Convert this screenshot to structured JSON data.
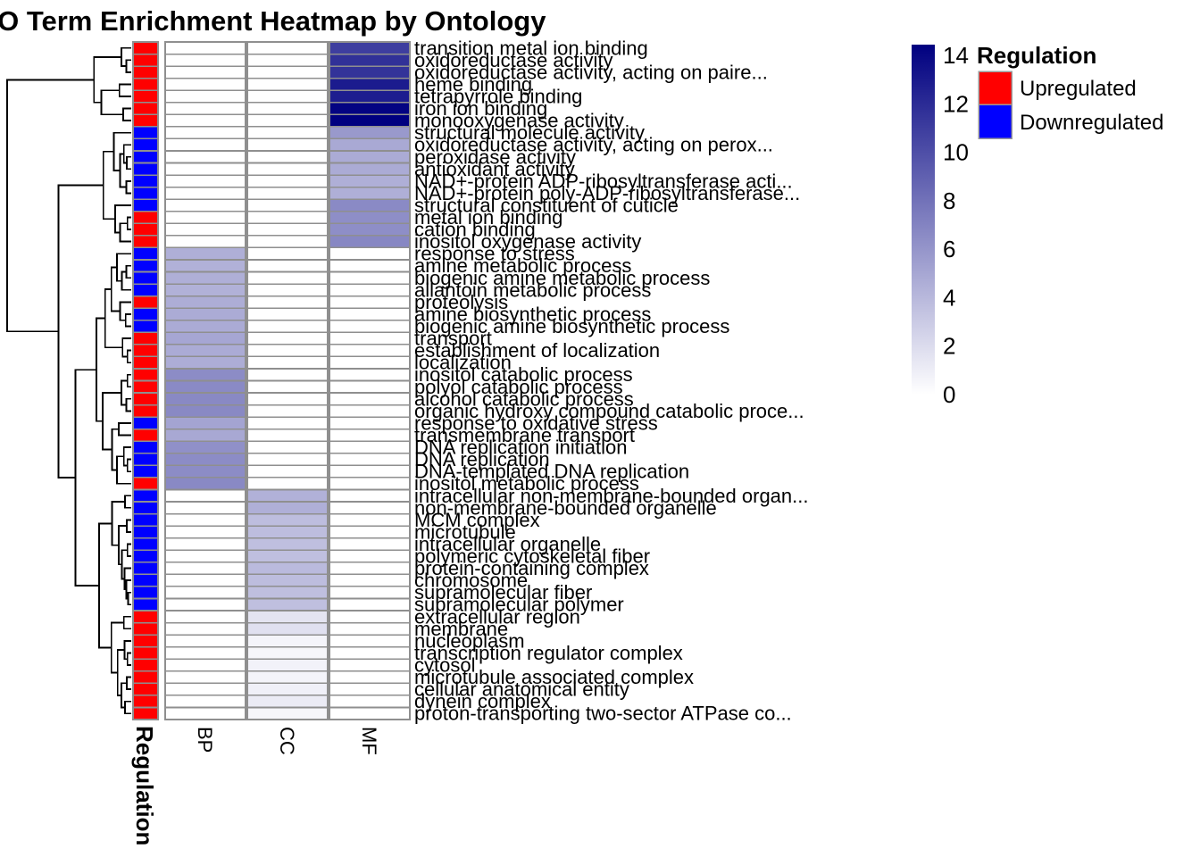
{
  "chart_data": {
    "type": "heatmap",
    "title": "GO Term Enrichment Heatmap by Ontology",
    "columns": [
      "BP",
      "CC",
      "MF"
    ],
    "value_scale": {
      "min": 0,
      "max": 14,
      "min_color": "#FFFFFF",
      "max_color": "#000080",
      "ticks": [
        14,
        12,
        10,
        8,
        6,
        4,
        2,
        0
      ]
    },
    "annotation": {
      "title": "Regulation",
      "categories": [
        {
          "label": "Upregulated",
          "color": "#FF0000"
        },
        {
          "label": "Downregulated",
          "color": "#0000FF"
        }
      ]
    },
    "rows": [
      {
        "label": "transition metal ion binding",
        "regulation": "Upregulated",
        "ontology": "MF",
        "value": 10.6
      },
      {
        "label": "oxidoreductase activity",
        "regulation": "Upregulated",
        "ontology": "MF",
        "value": 11.3
      },
      {
        "label": "oxidoreductase activity, acting on paire...",
        "regulation": "Upregulated",
        "ontology": "MF",
        "value": 11.2
      },
      {
        "label": "heme binding",
        "regulation": "Upregulated",
        "ontology": "MF",
        "value": 12.5
      },
      {
        "label": "tetrapyrrole binding",
        "regulation": "Upregulated",
        "ontology": "MF",
        "value": 12.4
      },
      {
        "label": "iron ion binding",
        "regulation": "Upregulated",
        "ontology": "MF",
        "value": 13.8
      },
      {
        "label": "monooxygenase activity",
        "regulation": "Upregulated",
        "ontology": "MF",
        "value": 14
      },
      {
        "label": "structural molecule activity",
        "regulation": "Downregulated",
        "ontology": "MF",
        "value": 5.6
      },
      {
        "label": "oxidoreductase activity, acting on perox...",
        "regulation": "Downregulated",
        "ontology": "MF",
        "value": 4.7
      },
      {
        "label": "peroxidase activity",
        "regulation": "Downregulated",
        "ontology": "MF",
        "value": 4.6
      },
      {
        "label": "antioxidant activity",
        "regulation": "Downregulated",
        "ontology": "MF",
        "value": 4.6
      },
      {
        "label": "NAD+-protein ADP-ribosyltransferase acti...",
        "regulation": "Downregulated",
        "ontology": "MF",
        "value": 4.4
      },
      {
        "label": "NAD+-protein poly-ADP-ribosyltransferase...",
        "regulation": "Downregulated",
        "ontology": "MF",
        "value": 4.4
      },
      {
        "label": "structural constituent of cuticle",
        "regulation": "Downregulated",
        "ontology": "MF",
        "value": 6.4
      },
      {
        "label": "metal ion binding",
        "regulation": "Upregulated",
        "ontology": "MF",
        "value": 6.2
      },
      {
        "label": "cation binding",
        "regulation": "Upregulated",
        "ontology": "MF",
        "value": 6.2
      },
      {
        "label": "inositol oxygenase activity",
        "regulation": "Upregulated",
        "ontology": "MF",
        "value": 6.6
      },
      {
        "label": "response to stress",
        "regulation": "Downregulated",
        "ontology": "BP",
        "value": 4.4
      },
      {
        "label": "amine metabolic process",
        "regulation": "Downregulated",
        "ontology": "BP",
        "value": 4.3
      },
      {
        "label": "biogenic amine metabolic process",
        "regulation": "Downregulated",
        "ontology": "BP",
        "value": 4.4
      },
      {
        "label": "allantoin metabolic process",
        "regulation": "Downregulated",
        "ontology": "BP",
        "value": 4.3
      },
      {
        "label": "proteolysis",
        "regulation": "Upregulated",
        "ontology": "BP",
        "value": 4.5
      },
      {
        "label": "amine biosynthetic process",
        "regulation": "Downregulated",
        "ontology": "BP",
        "value": 4.6
      },
      {
        "label": "biogenic amine biosynthetic process",
        "regulation": "Downregulated",
        "ontology": "BP",
        "value": 4.6
      },
      {
        "label": "transport",
        "regulation": "Upregulated",
        "ontology": "BP",
        "value": 4.9
      },
      {
        "label": "establishment of localization",
        "regulation": "Upregulated",
        "ontology": "BP",
        "value": 4.6
      },
      {
        "label": "localization",
        "regulation": "Upregulated",
        "ontology": "BP",
        "value": 4.5
      },
      {
        "label": "inositol catabolic process",
        "regulation": "Upregulated",
        "ontology": "BP",
        "value": 6.3
      },
      {
        "label": "polyol catabolic process",
        "regulation": "Upregulated",
        "ontology": "BP",
        "value": 6.4
      },
      {
        "label": "alcohol catabolic process",
        "regulation": "Upregulated",
        "ontology": "BP",
        "value": 6.5
      },
      {
        "label": "organic hydroxy compound catabolic proce...",
        "regulation": "Upregulated",
        "ontology": "BP",
        "value": 6.5
      },
      {
        "label": "response to oxidative stress",
        "regulation": "Downregulated",
        "ontology": "BP",
        "value": 5.0
      },
      {
        "label": "transmembrane transport",
        "regulation": "Upregulated",
        "ontology": "BP",
        "value": 4.8
      },
      {
        "label": "DNA replication initiation",
        "regulation": "Downregulated",
        "ontology": "BP",
        "value": 6.1
      },
      {
        "label": "DNA replication",
        "regulation": "Downregulated",
        "ontology": "BP",
        "value": 6.3
      },
      {
        "label": "DNA-templated DNA replication",
        "regulation": "Downregulated",
        "ontology": "BP",
        "value": 6.3
      },
      {
        "label": "inositol metabolic process",
        "regulation": "Upregulated",
        "ontology": "BP",
        "value": 6.5
      },
      {
        "label": "intracellular non-membrane-bounded organ...",
        "regulation": "Downregulated",
        "ontology": "CC",
        "value": 4.3
      },
      {
        "label": "non-membrane-bounded organelle",
        "regulation": "Downregulated",
        "ontology": "CC",
        "value": 4.4
      },
      {
        "label": "MCM complex",
        "regulation": "Downregulated",
        "ontology": "CC",
        "value": 3.6
      },
      {
        "label": "microtubule",
        "regulation": "Downregulated",
        "ontology": "CC",
        "value": 3.6
      },
      {
        "label": "intracellular organelle",
        "regulation": "Downregulated",
        "ontology": "CC",
        "value": 3.5
      },
      {
        "label": "polymeric cytoskeletal fiber",
        "regulation": "Downregulated",
        "ontology": "CC",
        "value": 3.5
      },
      {
        "label": "protein-containing complex",
        "regulation": "Downregulated",
        "ontology": "CC",
        "value": 3.8
      },
      {
        "label": "chromosome",
        "regulation": "Downregulated",
        "ontology": "CC",
        "value": 3.6
      },
      {
        "label": "supramolecular fiber",
        "regulation": "Downregulated",
        "ontology": "CC",
        "value": 3.5
      },
      {
        "label": "supramolecular polymer",
        "regulation": "Downregulated",
        "ontology": "CC",
        "value": 3.5
      },
      {
        "label": "extracellular region",
        "regulation": "Upregulated",
        "ontology": "CC",
        "value": 1.5
      },
      {
        "label": "membrane",
        "regulation": "Upregulated",
        "ontology": "CC",
        "value": 1.7
      },
      {
        "label": "nucleoplasm",
        "regulation": "Upregulated",
        "ontology": "CC",
        "value": 0.6
      },
      {
        "label": "transcription regulator complex",
        "regulation": "Upregulated",
        "ontology": "CC",
        "value": 0.5
      },
      {
        "label": "cytosol",
        "regulation": "Upregulated",
        "ontology": "CC",
        "value": 0.7
      },
      {
        "label": "microtubule associated complex",
        "regulation": "Upregulated",
        "ontology": "CC",
        "value": 0.6
      },
      {
        "label": "cellular anatomical entity",
        "regulation": "Upregulated",
        "ontology": "CC",
        "value": 0.8
      },
      {
        "label": "dynein complex",
        "regulation": "Upregulated",
        "ontology": "CC",
        "value": 1.1
      },
      {
        "label": "proton-transporting two-sector ATPase co...",
        "regulation": "Upregulated",
        "ontology": "CC",
        "value": 0.5
      }
    ],
    "row_dendrogram": [
      [
        [
          0,
          [
            1,
            2,
            0.04
          ],
          0.08
        ],
        [
          [
            3,
            4,
            0.095
          ],
          [
            5,
            6,
            0.065
          ],
          0.24
        ],
        0.3
      ],
      [
        [
          [
            7,
            [
              [
                8,
                [
                  9,
                  10,
                  0.035
                ],
                0.06
              ],
              [
                11,
                12,
                0.04
              ],
              0.09
            ],
            0.14
          ],
          [
            13,
            [
              [
                14,
                15,
                0.03
              ],
              16,
              0.09
            ],
            0.13
          ],
          0.225
        ],
        [
          [
            [
              [
                [
                  17,
                  [
                    [
                      18,
                      19,
                      0.04
                    ],
                    20,
                    0.075
                  ],
                  0.115
                ],
                [
                  21,
                  [
                    22,
                    23,
                    0.045
                  ],
                  0.09
                ],
                0.16
              ],
              [
                24,
                [
                  25,
                  26,
                  0.03
                ],
                0.07
              ],
              0.21
            ],
            [
              [
                [
                  27,
                  28,
                  0.03
                ],
                [
                  29,
                  30,
                  0.04
                ],
                0.08
              ],
              [
                [
                  31,
                  32,
                  0.1
                ],
                [
                  [
                    33,
                    [
                      34,
                      35,
                      0.03
                    ],
                    0.06
                  ],
                  36,
                  0.115
                ],
                0.155
              ],
              0.23
            ],
            0.28
          ],
          [
            [
              [
                37,
                38,
                0.05
              ],
              [
                [
                  39,
                  40,
                  0.035
                ],
                [
                  [
                    41,
                    42,
                    0.03
                  ],
                  [
                    43,
                    [
                      44,
                      [
                        45,
                        46,
                        0.025
                      ],
                      0.04
                    ],
                    0.055
                  ],
                  0.075
                ],
                0.1
              ],
              0.155
            ],
            [
              [
                47,
                48,
                0.06
              ],
              [
                [
                  49,
                  [
                    50,
                    51,
                    0.03
                  ],
                  0.055
                ],
                [
                  [
                    52,
                    53,
                    0.035
                  ],
                  [
                    54,
                    55,
                    0.05
                  ],
                  0.08
                ],
                0.11
              ],
              0.16
            ],
            0.26
          ],
          0.45
        ],
        0.587
      ],
      1.0
    ]
  }
}
